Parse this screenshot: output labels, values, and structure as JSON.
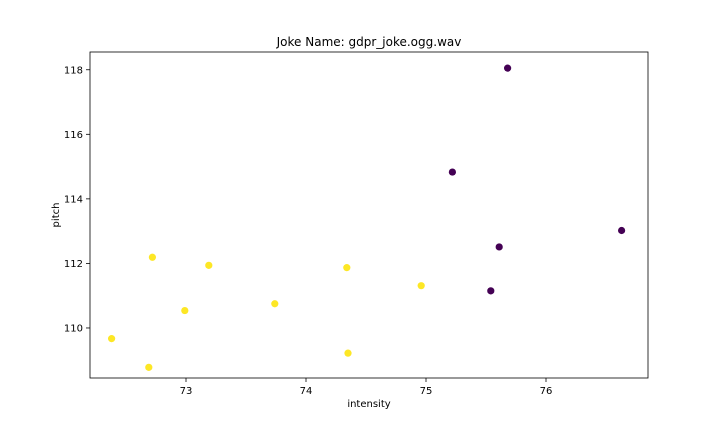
{
  "chart_data": {
    "type": "scatter",
    "title": "Joke Name: gdpr_joke.ogg.wav",
    "xlabel": "intensity",
    "ylabel": "pitch",
    "xlim": [
      72.2,
      76.85
    ],
    "ylim": [
      108.45,
      118.55
    ],
    "xticks": [
      "73",
      "74",
      "75",
      "76"
    ],
    "yticks": [
      "110",
      "112",
      "114",
      "116",
      "118"
    ],
    "grid": false,
    "legend": "none",
    "colors": {
      "class_0": "#440154",
      "class_1": "#fde725"
    },
    "points": [
      {
        "x": 75.68,
        "y": 118.05,
        "class": 0
      },
      {
        "x": 75.22,
        "y": 114.83,
        "class": 0
      },
      {
        "x": 76.63,
        "y": 113.02,
        "class": 0
      },
      {
        "x": 75.61,
        "y": 112.51,
        "class": 0
      },
      {
        "x": 75.54,
        "y": 111.15,
        "class": 0
      },
      {
        "x": 72.72,
        "y": 112.19,
        "class": 1
      },
      {
        "x": 73.19,
        "y": 111.94,
        "class": 1
      },
      {
        "x": 74.34,
        "y": 111.87,
        "class": 1
      },
      {
        "x": 74.96,
        "y": 111.31,
        "class": 1
      },
      {
        "x": 73.74,
        "y": 110.75,
        "class": 1
      },
      {
        "x": 72.99,
        "y": 110.54,
        "class": 1
      },
      {
        "x": 72.38,
        "y": 109.67,
        "class": 1
      },
      {
        "x": 72.69,
        "y": 108.78,
        "class": 1
      },
      {
        "x": 74.35,
        "y": 109.22,
        "class": 1
      }
    ]
  }
}
